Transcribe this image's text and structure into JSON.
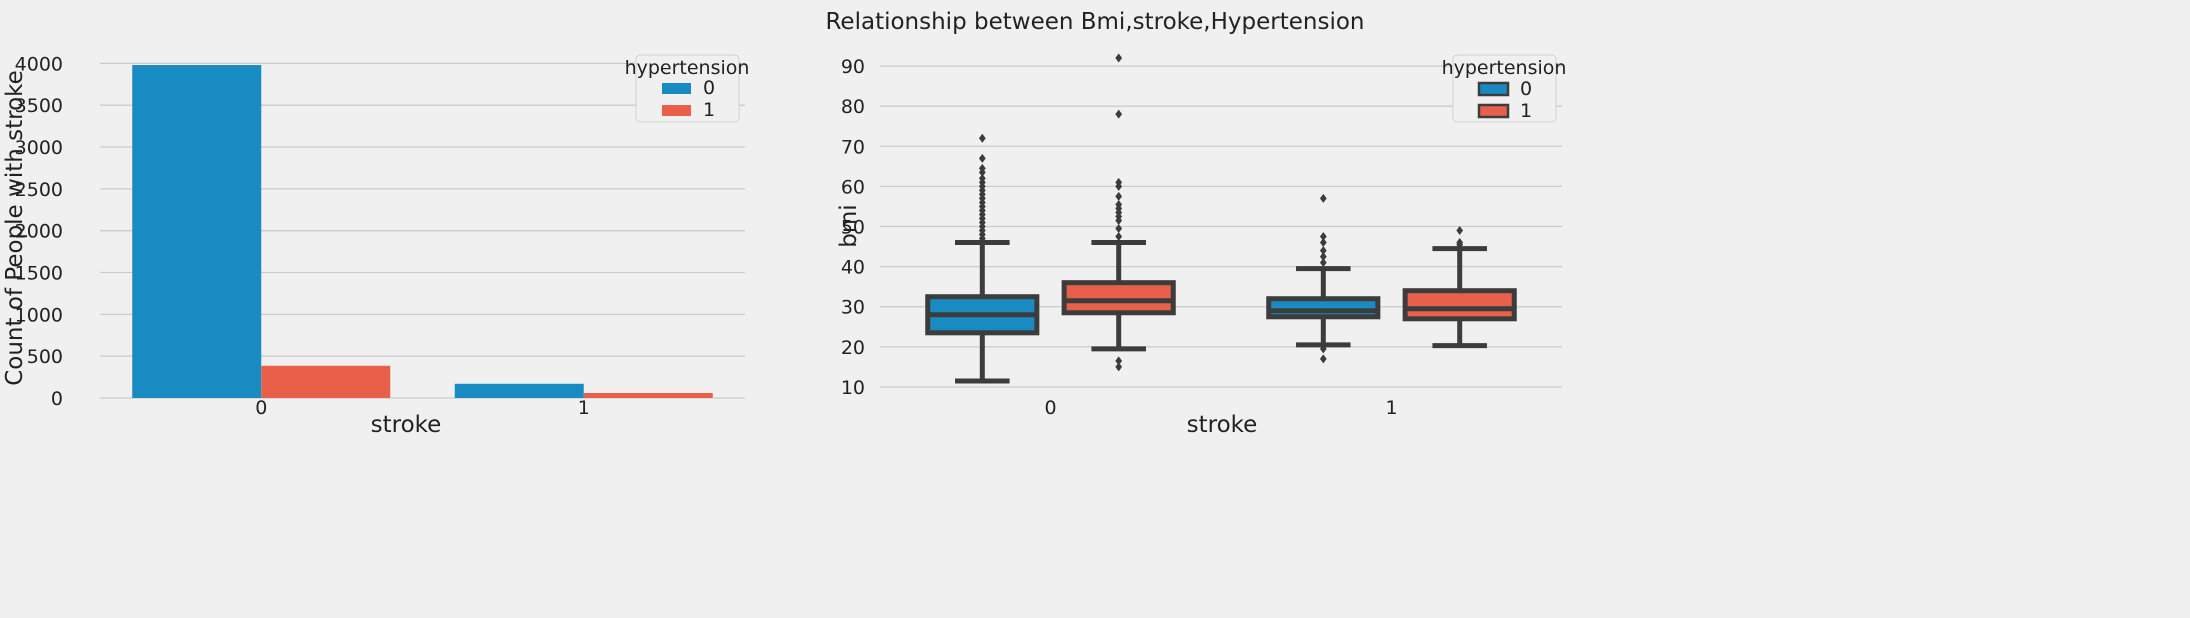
{
  "suptitle": "Relationship between Bmi,stroke,Hypertension",
  "colors": {
    "hypertension_0": "#188bc2",
    "hypertension_1": "#e8604a",
    "box_edge": "#3c3c3c",
    "grid": "#cbcbcb",
    "background": "#f0f0f0"
  },
  "chart_data": [
    {
      "type": "bar",
      "title": "",
      "xlabel": "stroke",
      "ylabel": "Count of People with stroke",
      "categories": [
        "0",
        "1"
      ],
      "ylim": [
        0,
        4100
      ],
      "yticks": [
        0,
        500,
        1000,
        1500,
        2000,
        2500,
        3000,
        3500,
        4000
      ],
      "grid": "horizontal",
      "legend": {
        "title": "hypertension",
        "placement": "upper right",
        "labels": [
          "0",
          "1"
        ]
      },
      "series": [
        {
          "name": "0",
          "values": [
            3980,
            170
          ]
        },
        {
          "name": "1",
          "values": [
            385,
            60
          ]
        }
      ]
    },
    {
      "type": "box",
      "title": "",
      "xlabel": "stroke",
      "ylabel": "bmi",
      "categories": [
        "0",
        "1"
      ],
      "ylim": [
        8,
        94
      ],
      "yticks": [
        10,
        20,
        30,
        40,
        50,
        60,
        70,
        80,
        90
      ],
      "grid": "horizontal",
      "legend": {
        "title": "hypertension",
        "placement": "upper right",
        "labels": [
          "0",
          "1"
        ]
      },
      "series": [
        {
          "name": "0",
          "boxes": [
            {
              "category": "0",
              "whisker_low": 11.5,
              "q1": 23.5,
              "median": 28.0,
              "q3": 32.5,
              "whisker_high": 46.0,
              "outliers": [
                47,
                48,
                49,
                50,
                51,
                52,
                53,
                54,
                55,
                56,
                57,
                58,
                59,
                60,
                61,
                62,
                63.5,
                64.5,
                67,
                72
              ]
            },
            {
              "category": "1",
              "whisker_low": 20.5,
              "q1": 27.5,
              "median": 29.0,
              "q3": 32.0,
              "whisker_high": 39.5,
              "outliers": [
                19.5,
                17,
                41,
                42.5,
                44,
                46,
                47.5,
                57
              ]
            }
          ]
        },
        {
          "name": "1",
          "boxes": [
            {
              "category": "0",
              "whisker_low": 19.5,
              "q1": 28.5,
              "median": 31.5,
              "q3": 36.0,
              "whisker_high": 46.0,
              "outliers": [
                16.5,
                15,
                47.5,
                49.5,
                51.5,
                52.5,
                53.5,
                54.5,
                55.5,
                57.5,
                60,
                61,
                78,
                92
              ]
            },
            {
              "category": "1",
              "whisker_low": 20.3,
              "q1": 27.0,
              "median": 29.5,
              "q3": 34.0,
              "whisker_high": 44.5,
              "outliers": [
                45.5,
                46,
                49
              ]
            }
          ]
        }
      ]
    }
  ]
}
